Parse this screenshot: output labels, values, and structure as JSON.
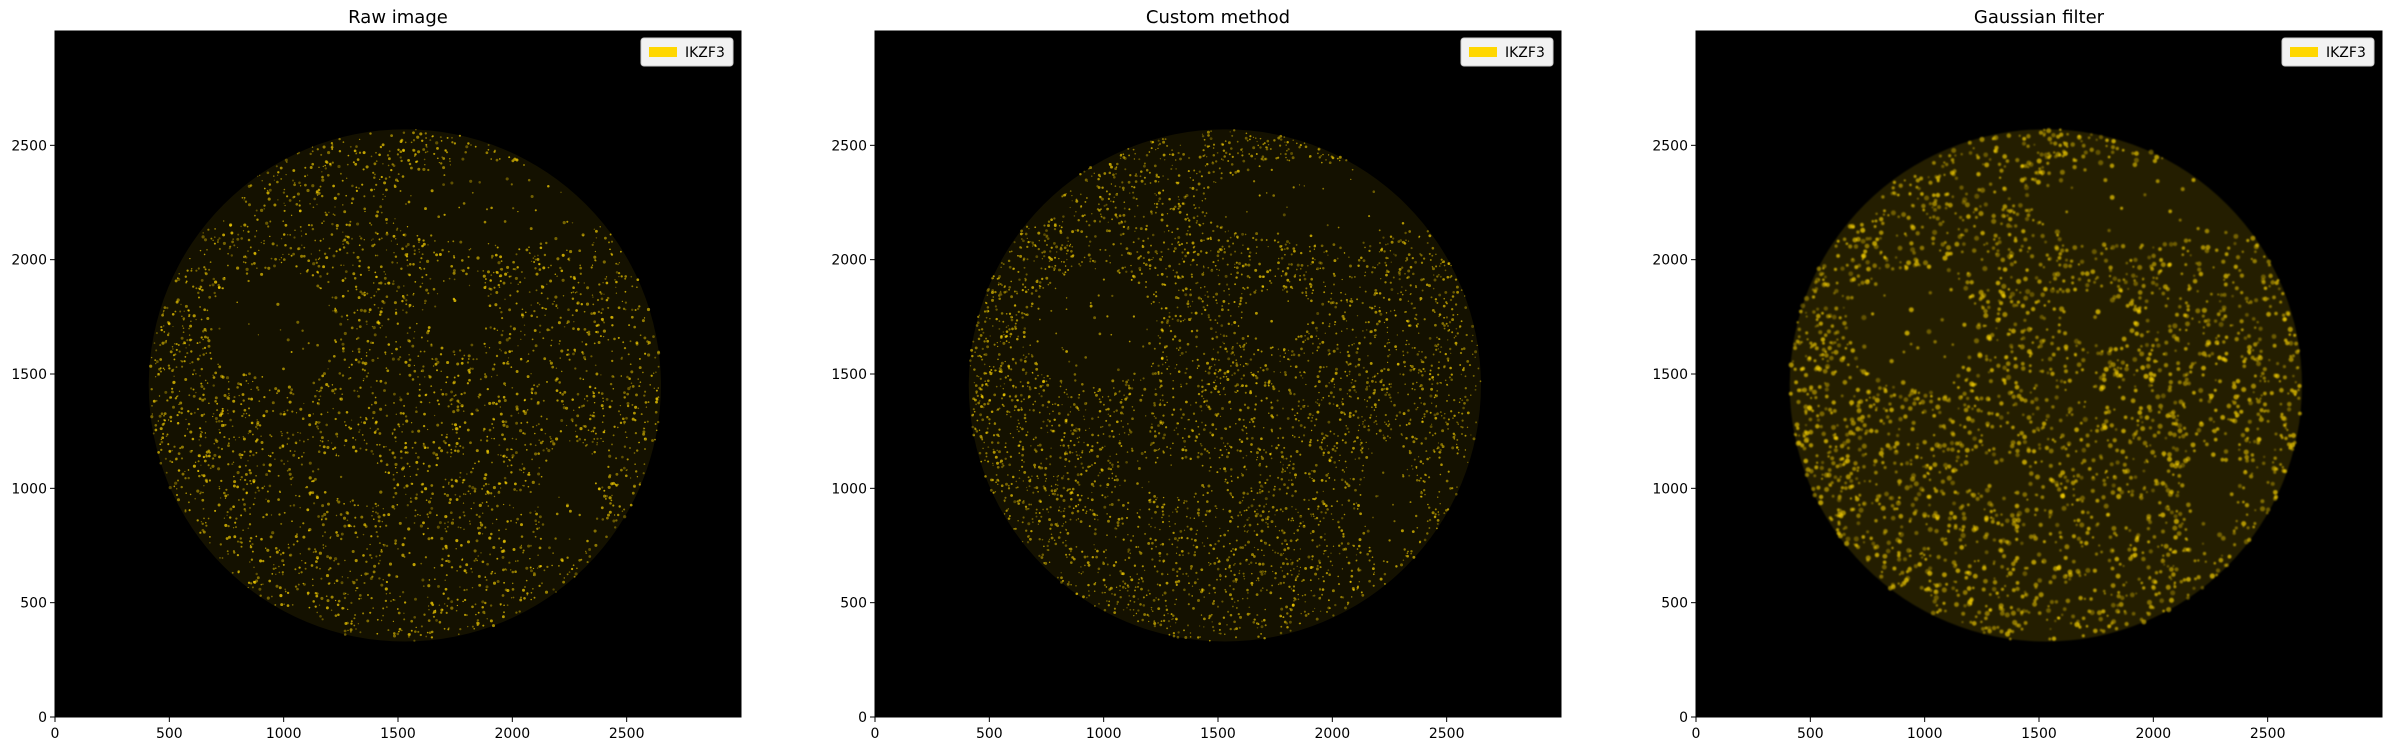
{
  "figure": {
    "panels": [
      {
        "id": "raw",
        "title": "Raw image",
        "legend_label": "IKZF3",
        "filter": "raw"
      },
      {
        "id": "custom",
        "title": "Custom method",
        "legend_label": "IKZF3",
        "filter": "custom"
      },
      {
        "id": "gaussian",
        "title": "Gaussian filter",
        "legend_label": "IKZF3",
        "filter": "gaussian"
      }
    ],
    "axes": {
      "x_range": [
        0,
        3000
      ],
      "y_range": [
        0,
        3000
      ],
      "x_ticks": [
        0,
        500,
        1000,
        1500,
        2000,
        2500
      ],
      "y_ticks": [
        0,
        500,
        1000,
        1500,
        2000,
        2500
      ]
    },
    "colors": {
      "background": "#000000",
      "signal": "#ffd700",
      "legend_patch": "#ffd700"
    }
  }
}
